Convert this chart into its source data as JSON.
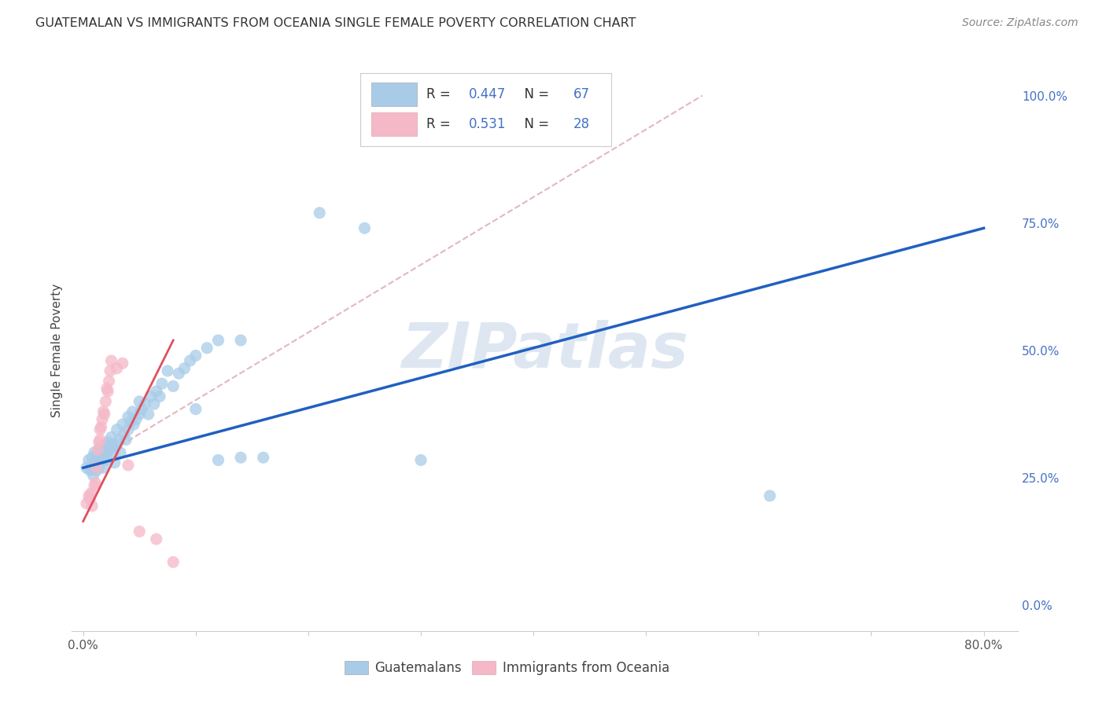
{
  "title": "GUATEMALAN VS IMMIGRANTS FROM OCEANIA SINGLE FEMALE POVERTY CORRELATION CHART",
  "source": "Source: ZipAtlas.com",
  "ylabel": "Single Female Poverty",
  "ytick_labels": [
    "0.0%",
    "25.0%",
    "50.0%",
    "75.0%",
    "100.0%"
  ],
  "ytick_vals": [
    0.0,
    0.25,
    0.5,
    0.75,
    1.0
  ],
  "xtick_vals": [
    0.0,
    0.1,
    0.2,
    0.3,
    0.4,
    0.5,
    0.6,
    0.7,
    0.8
  ],
  "xtick_labels": [
    "0.0%",
    "",
    "",
    "",
    "",
    "",
    "",
    "",
    "80.0%"
  ],
  "xlim": [
    -0.01,
    0.83
  ],
  "ylim": [
    -0.05,
    1.05
  ],
  "watermark": "ZIPatlas",
  "blue_scatter_color": "#a8cce8",
  "pink_scatter_color": "#f5b8c8",
  "blue_line_color": "#2060c0",
  "pink_line_color": "#e05060",
  "diag_color": "#e0b0b8",
  "tick_color": "#4472c4",
  "R_blue_text": "0.447",
  "N_blue_text": "67",
  "R_pink_text": "0.531",
  "N_pink_text": "28",
  "legend_labels_bottom": [
    "Guatemalans",
    "Immigrants from Oceania"
  ],
  "blue_points": [
    [
      0.003,
      0.27
    ],
    [
      0.005,
      0.285
    ],
    [
      0.006,
      0.265
    ],
    [
      0.007,
      0.27
    ],
    [
      0.008,
      0.29
    ],
    [
      0.009,
      0.255
    ],
    [
      0.01,
      0.3
    ],
    [
      0.01,
      0.275
    ],
    [
      0.011,
      0.285
    ],
    [
      0.012,
      0.265
    ],
    [
      0.013,
      0.295
    ],
    [
      0.014,
      0.27
    ],
    [
      0.015,
      0.31
    ],
    [
      0.016,
      0.285
    ],
    [
      0.017,
      0.295
    ],
    [
      0.018,
      0.27
    ],
    [
      0.019,
      0.3
    ],
    [
      0.02,
      0.315
    ],
    [
      0.02,
      0.285
    ],
    [
      0.021,
      0.295
    ],
    [
      0.022,
      0.32
    ],
    [
      0.023,
      0.305
    ],
    [
      0.025,
      0.33
    ],
    [
      0.025,
      0.315
    ],
    [
      0.026,
      0.295
    ],
    [
      0.027,
      0.31
    ],
    [
      0.028,
      0.28
    ],
    [
      0.03,
      0.345
    ],
    [
      0.03,
      0.315
    ],
    [
      0.032,
      0.325
    ],
    [
      0.033,
      0.3
    ],
    [
      0.035,
      0.355
    ],
    [
      0.036,
      0.335
    ],
    [
      0.038,
      0.325
    ],
    [
      0.04,
      0.37
    ],
    [
      0.04,
      0.345
    ],
    [
      0.042,
      0.36
    ],
    [
      0.044,
      0.38
    ],
    [
      0.045,
      0.355
    ],
    [
      0.047,
      0.365
    ],
    [
      0.05,
      0.4
    ],
    [
      0.05,
      0.375
    ],
    [
      0.052,
      0.385
    ],
    [
      0.055,
      0.395
    ],
    [
      0.058,
      0.375
    ],
    [
      0.06,
      0.41
    ],
    [
      0.063,
      0.395
    ],
    [
      0.065,
      0.42
    ],
    [
      0.068,
      0.41
    ],
    [
      0.07,
      0.435
    ],
    [
      0.075,
      0.46
    ],
    [
      0.08,
      0.43
    ],
    [
      0.085,
      0.455
    ],
    [
      0.09,
      0.465
    ],
    [
      0.095,
      0.48
    ],
    [
      0.1,
      0.49
    ],
    [
      0.11,
      0.505
    ],
    [
      0.12,
      0.52
    ],
    [
      0.14,
      0.52
    ],
    [
      0.1,
      0.385
    ],
    [
      0.12,
      0.285
    ],
    [
      0.14,
      0.29
    ],
    [
      0.16,
      0.29
    ],
    [
      0.21,
      0.77
    ],
    [
      0.25,
      0.74
    ],
    [
      0.3,
      0.285
    ],
    [
      0.61,
      0.215
    ]
  ],
  "pink_points": [
    [
      0.003,
      0.2
    ],
    [
      0.005,
      0.215
    ],
    [
      0.006,
      0.21
    ],
    [
      0.007,
      0.22
    ],
    [
      0.008,
      0.195
    ],
    [
      0.01,
      0.235
    ],
    [
      0.011,
      0.24
    ],
    [
      0.012,
      0.27
    ],
    [
      0.013,
      0.305
    ],
    [
      0.014,
      0.32
    ],
    [
      0.015,
      0.345
    ],
    [
      0.015,
      0.325
    ],
    [
      0.016,
      0.35
    ],
    [
      0.017,
      0.365
    ],
    [
      0.018,
      0.38
    ],
    [
      0.019,
      0.375
    ],
    [
      0.02,
      0.4
    ],
    [
      0.021,
      0.425
    ],
    [
      0.022,
      0.42
    ],
    [
      0.023,
      0.44
    ],
    [
      0.024,
      0.46
    ],
    [
      0.025,
      0.48
    ],
    [
      0.03,
      0.465
    ],
    [
      0.035,
      0.475
    ],
    [
      0.04,
      0.275
    ],
    [
      0.05,
      0.145
    ],
    [
      0.065,
      0.13
    ],
    [
      0.08,
      0.085
    ]
  ],
  "blue_line": [
    0.0,
    0.27,
    0.8,
    0.74
  ],
  "pink_line": [
    0.0,
    0.165,
    0.08,
    0.52
  ],
  "diag_line": [
    0.0,
    0.27,
    0.55,
    1.0
  ]
}
